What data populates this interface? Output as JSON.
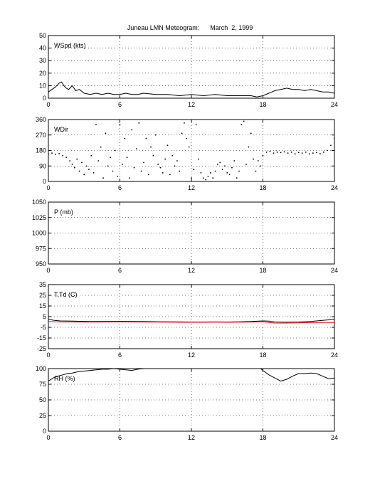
{
  "title": "Juneau LMN Meteogram:      March  2, 1999",
  "x_ticks": [
    "0",
    "6",
    "12",
    "18",
    "24"
  ],
  "colors": {
    "primary": "#000000",
    "dewpoint": "#ff0000",
    "grid": "#000000"
  },
  "chart_data": [
    {
      "type": "line",
      "panel": "wind-speed",
      "label": "WSpd (kts)",
      "xlim": [
        0,
        24
      ],
      "ylim": [
        0,
        50
      ],
      "yticks": [
        "0",
        "10",
        "20",
        "30",
        "40",
        "50"
      ],
      "grid": true,
      "series": [
        {
          "color": "#000000",
          "x": [
            0.0,
            0.3,
            0.6,
            0.9,
            1.1,
            1.3,
            1.5,
            1.7,
            2.0,
            2.3,
            2.6,
            3.0,
            3.5,
            4.0,
            4.5,
            5.0,
            5.5,
            6.0,
            6.5,
            7.0,
            7.5,
            8.0,
            9.0,
            10.0,
            11.0,
            12.0,
            13.0,
            14.0,
            15.0,
            16.0,
            17.0,
            17.5,
            18.0,
            18.5,
            19.0,
            19.5,
            20.0,
            20.5,
            21.0,
            21.5,
            22.0,
            22.5,
            23.0,
            23.5,
            24.0
          ],
          "y": [
            5,
            7,
            9,
            12,
            13,
            10,
            8,
            7,
            10,
            6,
            7,
            4,
            3,
            4,
            3,
            4,
            3,
            3,
            4,
            3,
            3,
            4,
            3,
            3,
            2,
            3,
            2,
            3,
            2,
            2,
            2,
            1,
            2,
            4,
            6,
            7,
            8,
            7,
            7,
            6,
            7,
            6,
            5,
            5,
            4
          ]
        }
      ]
    },
    {
      "type": "scatter",
      "panel": "wind-direction",
      "label": "WDir",
      "xlim": [
        0,
        24
      ],
      "ylim": [
        0,
        360
      ],
      "yticks": [
        "0",
        "90",
        "180",
        "270",
        "360"
      ],
      "grid": true,
      "series": [
        {
          "color": "#000000",
          "x": [
            0.0,
            0.3,
            0.6,
            0.9,
            1.2,
            1.5,
            1.8,
            2.0,
            2.2,
            2.4,
            2.6,
            2.8,
            3.0,
            3.2,
            3.4,
            3.6,
            3.8,
            4.0,
            4.2,
            4.4,
            4.6,
            4.8,
            5.0,
            5.2,
            5.4,
            5.6,
            5.8,
            6.0,
            6.2,
            6.4,
            6.6,
            6.8,
            7.0,
            7.2,
            7.4,
            7.6,
            7.8,
            8.0,
            8.2,
            8.4,
            8.6,
            8.8,
            9.0,
            9.2,
            9.4,
            9.6,
            9.8,
            10.0,
            10.2,
            10.4,
            10.6,
            10.8,
            11.0,
            11.2,
            11.4,
            11.6,
            11.8,
            12.0,
            12.2,
            12.4,
            12.6,
            12.8,
            13.0,
            13.2,
            13.4,
            13.6,
            13.8,
            14.0,
            14.2,
            14.4,
            14.6,
            14.8,
            15.0,
            15.2,
            15.4,
            15.6,
            15.8,
            16.0,
            16.2,
            16.4,
            16.6,
            16.8,
            17.0,
            17.2,
            17.4,
            17.6,
            17.8,
            18.0,
            18.3,
            18.6,
            18.9,
            19.2,
            19.5,
            19.8,
            20.1,
            20.4,
            20.7,
            21.0,
            21.3,
            21.6,
            21.9,
            22.2,
            22.5,
            22.8,
            23.1,
            23.4,
            23.7,
            24.0
          ],
          "y": [
            160,
            165,
            158,
            162,
            150,
            140,
            120,
            100,
            80,
            130,
            60,
            110,
            40,
            90,
            70,
            150,
            50,
            330,
            120,
            200,
            20,
            280,
            90,
            140,
            60,
            180,
            30,
            330,
            100,
            250,
            140,
            20,
            300,
            80,
            190,
            340,
            60,
            110,
            250,
            40,
            200,
            150,
            270,
            100,
            80,
            50,
            130,
            210,
            40,
            150,
            90,
            120,
            60,
            280,
            340,
            250,
            200,
            20,
            70,
            330,
            130,
            50,
            20,
            10,
            30,
            50,
            20,
            60,
            100,
            110,
            70,
            90,
            50,
            40,
            80,
            120,
            20,
            60,
            330,
            350,
            100,
            200,
            280,
            130,
            60,
            120,
            90,
            150,
            170,
            175,
            165,
            170,
            168,
            172,
            165,
            170,
            160,
            168,
            165,
            170,
            160,
            165,
            168,
            162,
            170,
            180,
            210,
            250
          ]
        }
      ]
    },
    {
      "type": "line",
      "panel": "pressure",
      "label": "P (mb)",
      "xlim": [
        0,
        24
      ],
      "ylim": [
        950,
        1050
      ],
      "yticks": [
        "950",
        "975",
        "1000",
        "1025",
        "1050"
      ],
      "grid": true,
      "series": []
    },
    {
      "type": "line",
      "panel": "temperature-dewpoint",
      "label": "T,Td (C)",
      "xlim": [
        0,
        24
      ],
      "ylim": [
        -25,
        35
      ],
      "yticks": [
        "-25",
        "-15",
        "-5",
        "5",
        "15",
        "25",
        "35"
      ],
      "grid": true,
      "series": [
        {
          "color": "#000000",
          "x": [
            0,
            0.5,
            1,
            2,
            3,
            4,
            5,
            6,
            7,
            8,
            9,
            10,
            11,
            12,
            13,
            14,
            15,
            16,
            17,
            18,
            18.5,
            19,
            20,
            21,
            22,
            23,
            24
          ],
          "y": [
            2.5,
            1.5,
            1.0,
            0.8,
            0.6,
            0.5,
            0.5,
            0.6,
            0.5,
            0.4,
            0.3,
            0.2,
            0.1,
            0.0,
            0.0,
            0.1,
            0.0,
            0.2,
            0.5,
            1.0,
            0.8,
            0.0,
            -0.2,
            0.0,
            0.5,
            1.5,
            2.5
          ]
        },
        {
          "color": "#ff0000",
          "x": [
            0,
            0.5,
            1,
            2,
            3,
            4,
            5,
            6,
            7,
            8,
            9,
            10,
            11,
            12,
            13,
            14,
            15,
            16,
            17,
            18,
            18.5,
            19,
            20,
            21,
            22,
            23,
            24
          ],
          "y": [
            0.5,
            0.2,
            0.0,
            0.0,
            -0.1,
            -0.1,
            0.0,
            0.1,
            0.0,
            -0.1,
            -0.1,
            -0.2,
            -0.3,
            -0.3,
            -0.3,
            -0.2,
            -0.3,
            -0.2,
            -0.1,
            0.2,
            -0.5,
            -1.0,
            -1.0,
            -0.8,
            -0.6,
            -0.5,
            -0.5
          ]
        }
      ]
    },
    {
      "type": "line",
      "panel": "relative-humidity",
      "label": "RH (%)",
      "xlim": [
        0,
        24
      ],
      "ylim": [
        0,
        100
      ],
      "yticks": [
        "0",
        "25",
        "50",
        "75",
        "100"
      ],
      "grid": true,
      "series": [
        {
          "color": "#000000",
          "x": [
            0,
            0.4,
            0.8,
            1.2,
            1.6,
            2.0,
            2.5,
            3.0,
            3.5,
            4.0,
            4.5,
            5.0,
            5.5,
            6.0,
            6.5,
            7.0,
            7.5,
            8.0,
            8.5,
            9.0,
            17.8,
            18.0,
            18.5,
            19.0,
            19.5,
            20.0,
            20.5,
            21.0,
            21.5,
            22.0,
            22.5,
            23.0,
            23.5,
            24.0
          ],
          "y": [
            80,
            85,
            88,
            90,
            92,
            93,
            95,
            96,
            97,
            98,
            99,
            99,
            100,
            99,
            98,
            97,
            99,
            100,
            100,
            100,
            100,
            97,
            90,
            85,
            80,
            83,
            88,
            92,
            92,
            93,
            92,
            88,
            84,
            85
          ]
        }
      ]
    }
  ]
}
